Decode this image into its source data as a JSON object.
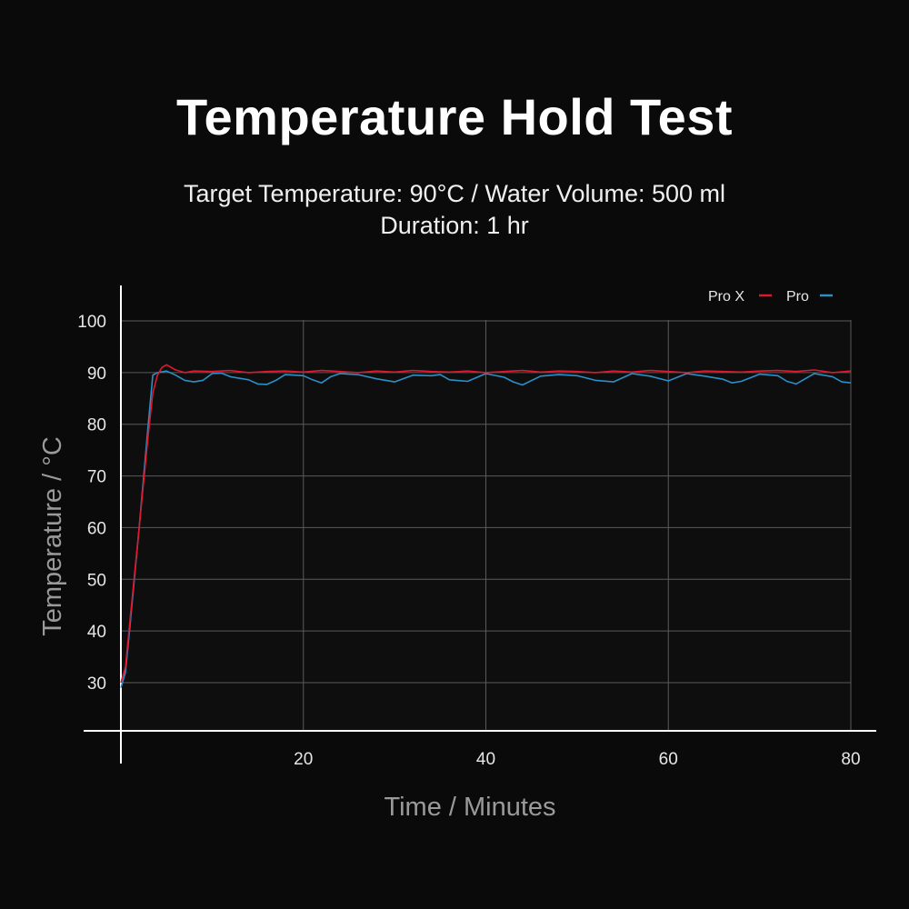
{
  "title": "Temperature Hold Test",
  "subtitle_line1": "Target Temperature: 90°C / Water Volume: 500 ml",
  "subtitle_line2": "Duration: 1 hr",
  "chart_data": {
    "type": "line",
    "title": "Temperature Hold Test",
    "xlabel": "Time / Minutes",
    "ylabel": "Temperature / °C",
    "xlim": [
      0,
      80
    ],
    "ylim": [
      20,
      103
    ],
    "x_ticks": [
      20,
      40,
      60,
      80
    ],
    "y_ticks": [
      30,
      40,
      50,
      60,
      70,
      80,
      90,
      100
    ],
    "grid": true,
    "legend_position": "top-right",
    "series": [
      {
        "name": "Pro X",
        "color": "#e0182d",
        "x": [
          0,
          0.5,
          1,
          2,
          3,
          3.5,
          4,
          4.5,
          5,
          6,
          7,
          8,
          10,
          12,
          14,
          16,
          18,
          20,
          22,
          24,
          26,
          28,
          30,
          32,
          34,
          36,
          38,
          40,
          42,
          44,
          46,
          48,
          50,
          52,
          54,
          56,
          58,
          60,
          62,
          64,
          66,
          68,
          70,
          72,
          74,
          76,
          78,
          80
        ],
        "values": [
          30,
          33,
          42,
          60,
          78,
          86,
          89.5,
          91,
          91.5,
          90.5,
          90,
          90.3,
          90.2,
          90.4,
          90,
          90.2,
          90.3,
          90.1,
          90.4,
          90.2,
          90,
          90.3,
          90.1,
          90.4,
          90.2,
          90.1,
          90.3,
          90,
          90.2,
          90.4,
          90.1,
          90.3,
          90.2,
          90,
          90.3,
          90.1,
          90.4,
          90.2,
          90,
          90.3,
          90.2,
          90.1,
          90.3,
          90.4,
          90.2,
          90.5,
          90,
          90.3
        ]
      },
      {
        "name": "Pro",
        "color": "#2b8fc8",
        "x": [
          0,
          0.5,
          1,
          2,
          3,
          3.5,
          4,
          5,
          6,
          7,
          8,
          9,
          10,
          11,
          12,
          14,
          15,
          16,
          17,
          18,
          20,
          21,
          22,
          23,
          24,
          26,
          28,
          30,
          32,
          34,
          35,
          36,
          38,
          40,
          42,
          43,
          44,
          46,
          48,
          50,
          52,
          54,
          56,
          58,
          60,
          62,
          64,
          66,
          67,
          68,
          70,
          72,
          73,
          74,
          76,
          78,
          79,
          80
        ],
        "values": [
          29,
          32,
          41,
          60,
          80,
          89.5,
          90,
          90.3,
          89.5,
          88.5,
          88.2,
          88.5,
          89.8,
          89.9,
          89.2,
          88.6,
          87.8,
          87.7,
          88.5,
          89.6,
          89.4,
          88.6,
          88,
          89.2,
          89.8,
          89.6,
          88.8,
          88.2,
          89.5,
          89.4,
          89.6,
          88.6,
          88.3,
          89.8,
          89.1,
          88.2,
          87.6,
          89.3,
          89.6,
          89.4,
          88.5,
          88.2,
          89.8,
          89.3,
          88.4,
          89.8,
          89.3,
          88.7,
          88,
          88.3,
          89.7,
          89.4,
          88.3,
          87.8,
          89.8,
          89.2,
          88.2,
          88
        ]
      }
    ]
  }
}
